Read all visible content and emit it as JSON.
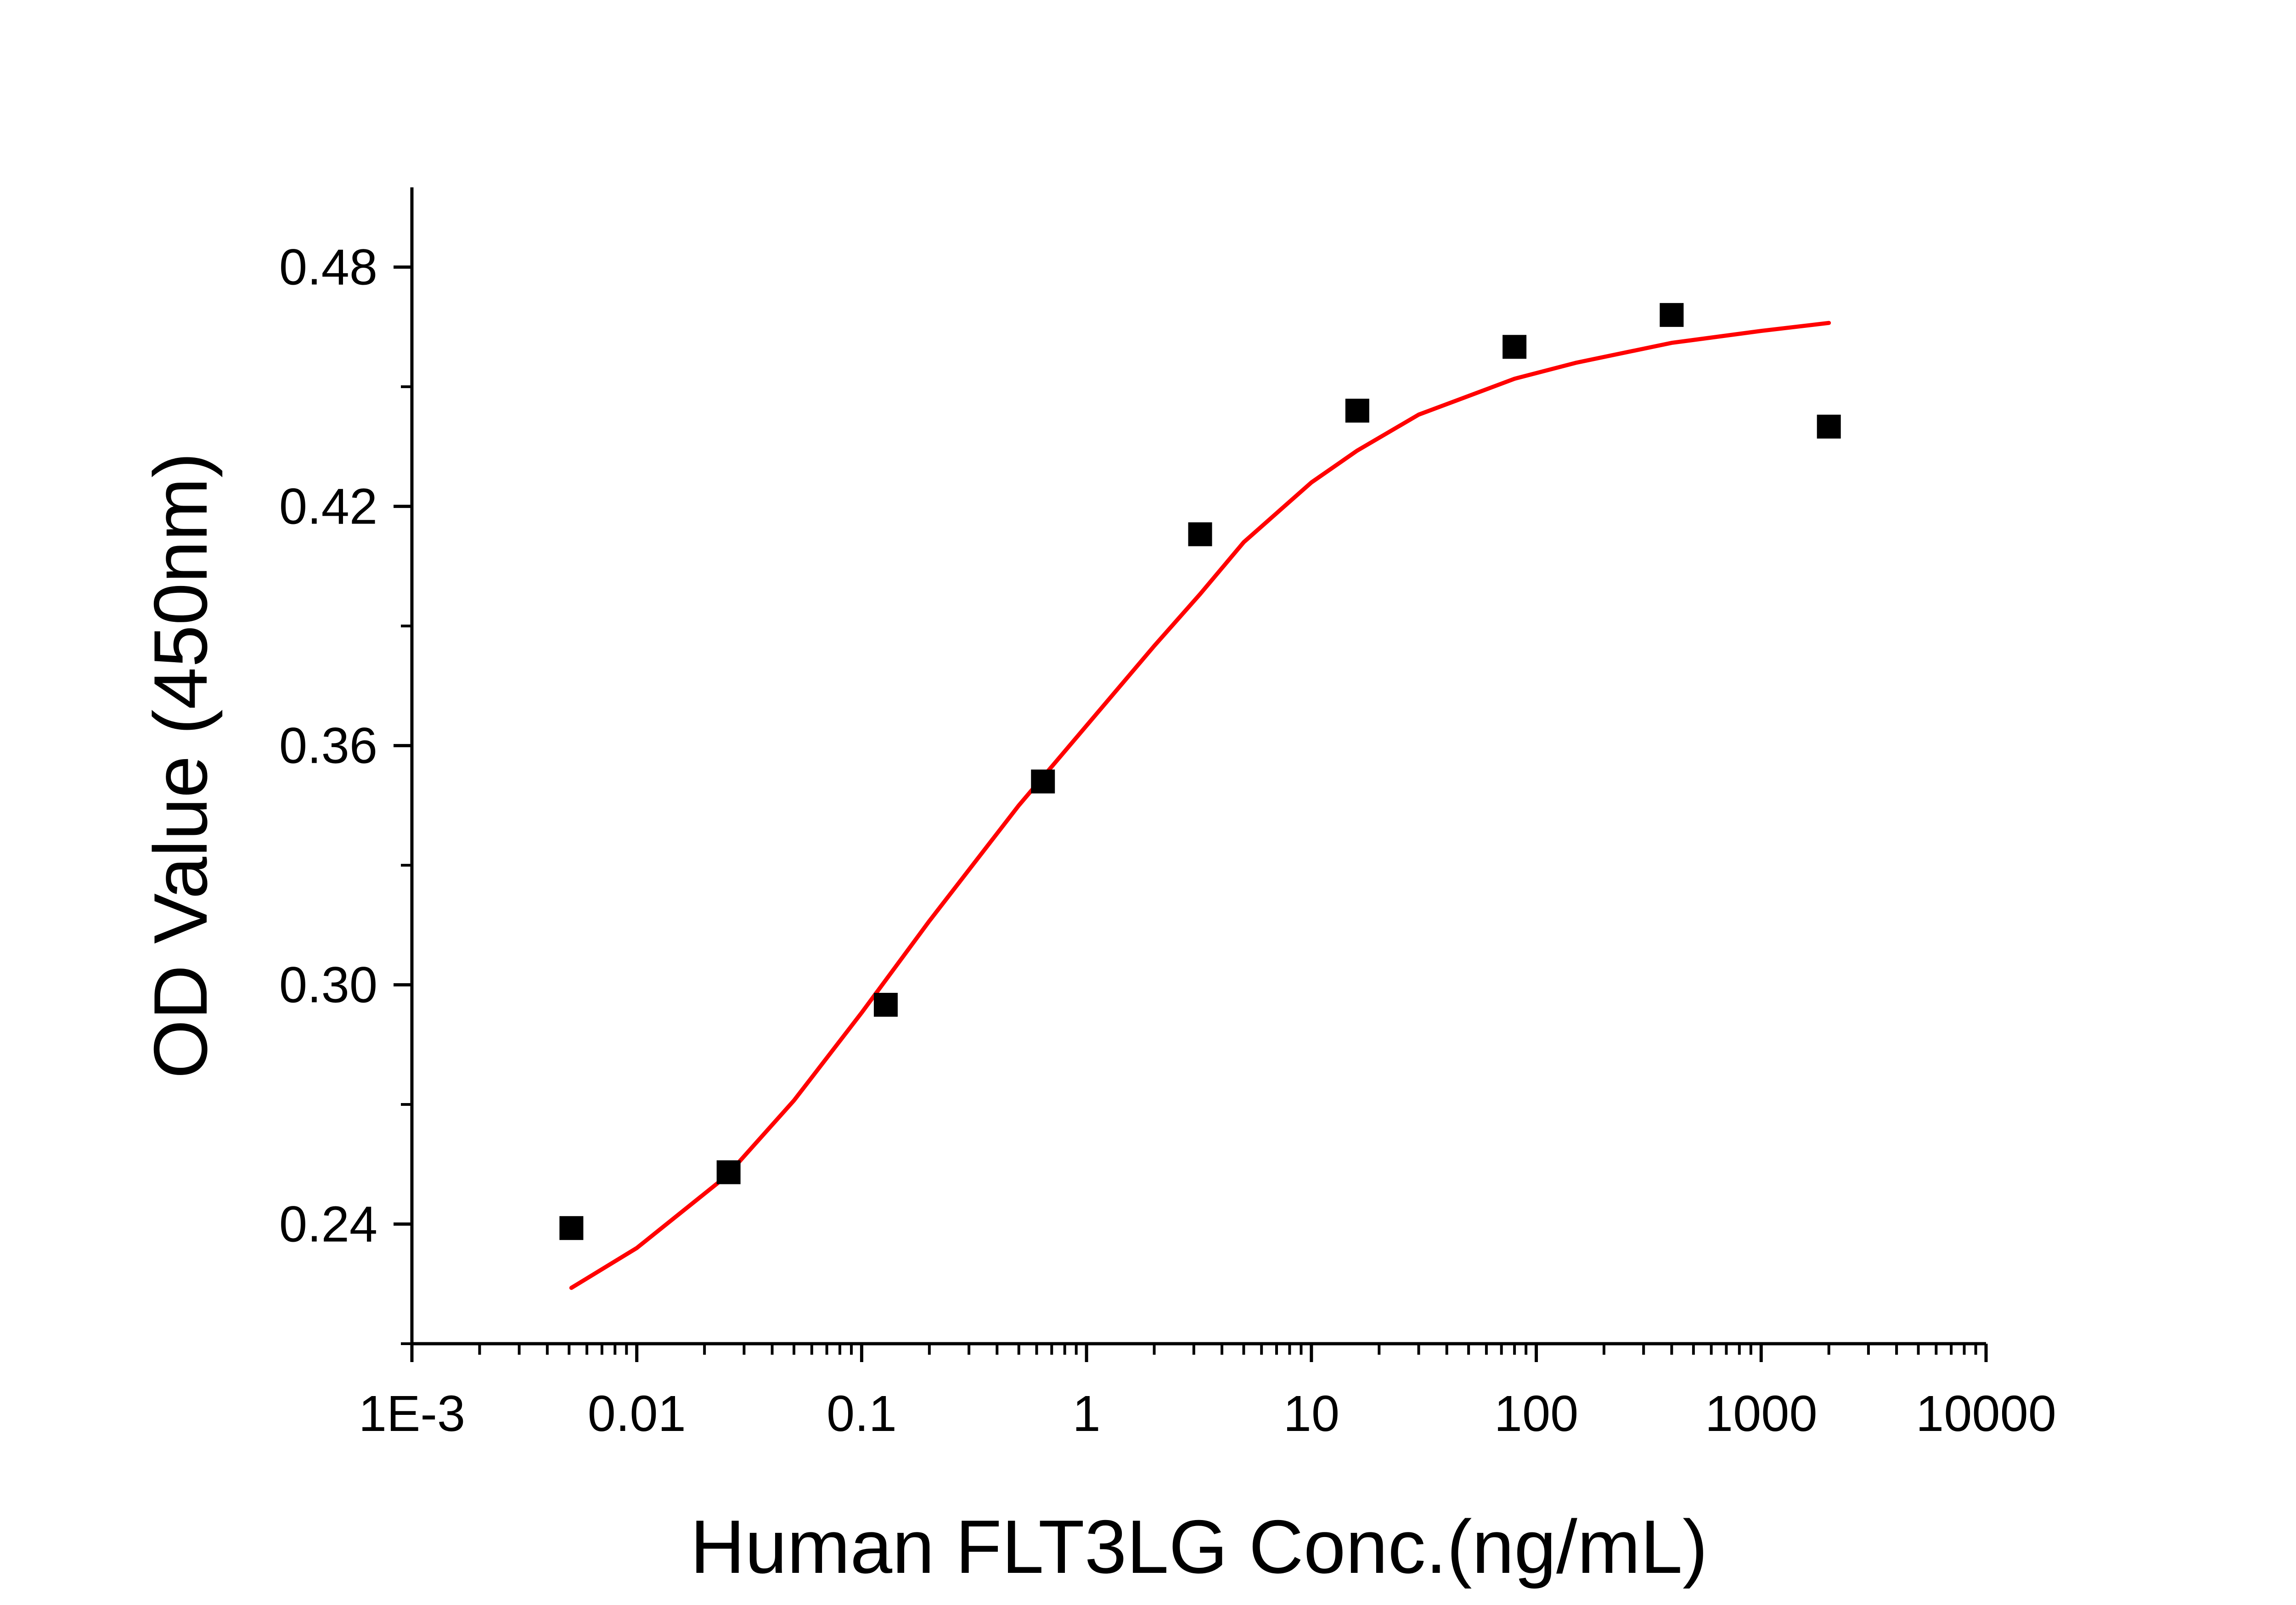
{
  "chart_data": {
    "type": "scatter",
    "title": "",
    "xlabel": "Human FLT3LG Conc.(ng/mL)",
    "ylabel": "OD Value (450nm)",
    "xscale": "log",
    "xlim": [
      0.001,
      10000
    ],
    "ylim": [
      0.21,
      0.5
    ],
    "x_ticks": [
      {
        "value": 0.001,
        "label": "1E-3"
      },
      {
        "value": 0.01,
        "label": "0.01"
      },
      {
        "value": 0.1,
        "label": "0.1"
      },
      {
        "value": 1,
        "label": "1"
      },
      {
        "value": 10,
        "label": "10"
      },
      {
        "value": 100,
        "label": "100"
      },
      {
        "value": 1000,
        "label": "1000"
      },
      {
        "value": 10000,
        "label": "10000"
      }
    ],
    "y_ticks": [
      {
        "value": 0.24,
        "label": "0.24"
      },
      {
        "value": 0.3,
        "label": "0.30"
      },
      {
        "value": 0.36,
        "label": "0.36"
      },
      {
        "value": 0.42,
        "label": "0.42"
      },
      {
        "value": 0.48,
        "label": "0.48"
      }
    ],
    "y_minor_ticks": [
      0.21,
      0.27,
      0.33,
      0.39,
      0.45
    ],
    "grid": false,
    "legend": "none",
    "series": [
      {
        "kind": "points",
        "marker": "square",
        "color": "#000000",
        "x": [
          0.00512,
          0.0256,
          0.128,
          0.64,
          3.2,
          16,
          80,
          400,
          2000
        ],
        "y": [
          0.239,
          0.253,
          0.295,
          0.351,
          0.413,
          0.444,
          0.46,
          0.468,
          0.44
        ]
      },
      {
        "kind": "fit",
        "color": "#ff0000",
        "x": [
          0.00512,
          0.01,
          0.025,
          0.05,
          0.1,
          0.2,
          0.5,
          1,
          2,
          3.2,
          5,
          10,
          16,
          30,
          80,
          150,
          400,
          1000,
          2000
        ],
        "y": [
          0.224,
          0.234,
          0.252,
          0.271,
          0.293,
          0.316,
          0.345,
          0.365,
          0.385,
          0.398,
          0.411,
          0.426,
          0.434,
          0.443,
          0.452,
          0.456,
          0.461,
          0.464,
          0.466
        ]
      }
    ]
  }
}
